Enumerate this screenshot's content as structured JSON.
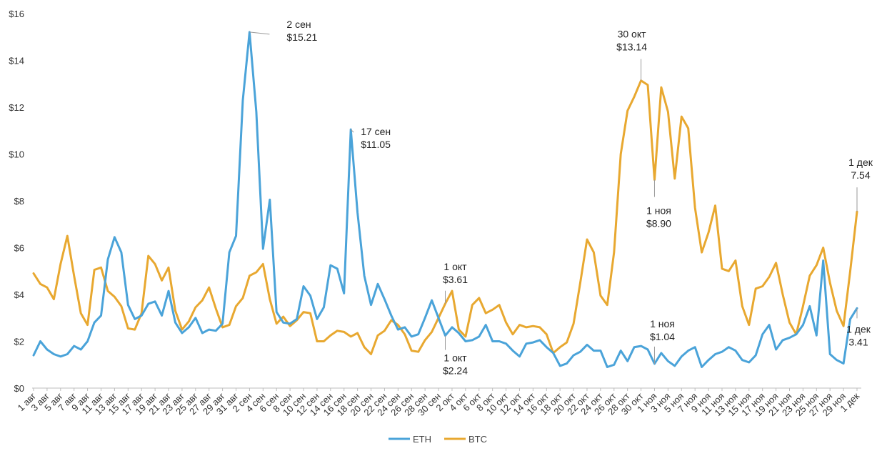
{
  "chart_data": {
    "type": "line",
    "title": "",
    "xlabel": "",
    "ylabel": "",
    "ylim": [
      0,
      16
    ],
    "y_ticks": [
      0,
      2,
      4,
      6,
      8,
      10,
      12,
      14,
      16
    ],
    "y_tick_labels": [
      "$0",
      "$2",
      "$4",
      "$6",
      "$8",
      "$10",
      "$12",
      "$14",
      "$16"
    ],
    "grid": false,
    "legend_position": "bottom-center",
    "x": [
      "1 авг",
      "2 авг",
      "3 авг",
      "4 авг",
      "5 авг",
      "6 авг",
      "7 авг",
      "8 авг",
      "9 авг",
      "10 авг",
      "11 авг",
      "12 авг",
      "13 авг",
      "14 авг",
      "15 авг",
      "16 авг",
      "17 авг",
      "18 авг",
      "19 авг",
      "20 авг",
      "21 авг",
      "22 авг",
      "23 авг",
      "24 авг",
      "25 авг",
      "26 авг",
      "27 авг",
      "28 авг",
      "29 авг",
      "30 авг",
      "31 авг",
      "1 сен",
      "2 сен",
      "3 сен",
      "4 сен",
      "5 сен",
      "6 сен",
      "7 сен",
      "8 сен",
      "9 сен",
      "10 сен",
      "11 сен",
      "12 сен",
      "13 сен",
      "14 сен",
      "15 сен",
      "16 сен",
      "17 сен",
      "18 сен",
      "19 сен",
      "20 сен",
      "21 сен",
      "22 сен",
      "23 сен",
      "24 сен",
      "25 сен",
      "26 сен",
      "27 сен",
      "28 сен",
      "29 сен",
      "30 сен",
      "1 окт",
      "2 окт",
      "3 окт",
      "4 окт",
      "5 окт",
      "6 окт",
      "7 окт",
      "8 окт",
      "9 окт",
      "10 окт",
      "11 окт",
      "12 окт",
      "13 окт",
      "14 окт",
      "15 окт",
      "16 окт",
      "17 окт",
      "18 окт",
      "19 окт",
      "20 окт",
      "21 окт",
      "22 окт",
      "23 окт",
      "24 окт",
      "25 окт",
      "26 окт",
      "27 окт",
      "28 окт",
      "29 окт",
      "30 окт",
      "31 окт",
      "1 ноя",
      "2 ноя",
      "3 ноя",
      "4 ноя",
      "5 ноя",
      "6 ноя",
      "7 ноя",
      "8 ноя",
      "9 ноя",
      "10 ноя",
      "11 ноя",
      "12 ноя",
      "13 ноя",
      "14 ноя",
      "15 ноя",
      "16 ноя",
      "17 ноя",
      "18 ноя",
      "19 ноя",
      "20 ноя",
      "21 ноя",
      "22 ноя",
      "23 ноя",
      "24 ноя",
      "25 ноя",
      "26 ноя",
      "27 ноя",
      "28 ноя",
      "29 ноя",
      "30 ноя",
      "1 дек"
    ],
    "x_tick_labels": [
      "1 авг",
      "3 авг",
      "5 авг",
      "7 авг",
      "9 авг",
      "11 авг",
      "13 авг",
      "15 авг",
      "17 авг",
      "19 авг",
      "21 авг",
      "23 авг",
      "25 авг",
      "27 авг",
      "29 авг",
      "31 авг",
      "2 сен",
      "4 сен",
      "6 сен",
      "8 сен",
      "10 сен",
      "12 сен",
      "14 сен",
      "16 сен",
      "18 сен",
      "20 сен",
      "22 сен",
      "24 сен",
      "26 сен",
      "28 сен",
      "30 сен",
      "2 окт",
      "4 окт",
      "6 окт",
      "8 окт",
      "10 окт",
      "12 окт",
      "14 окт",
      "16 окт",
      "18 окт",
      "20 окт",
      "22 окт",
      "24 окт",
      "26 окт",
      "28 окт",
      "30 окт",
      "1 ноя",
      "3 ноя",
      "5 ноя",
      "7 ноя",
      "9 ноя",
      "11 ноя",
      "13 ноя",
      "15 ноя",
      "17 ноя",
      "19 ноя",
      "21 ноя",
      "23 ноя",
      "25 ноя",
      "27 ноя",
      "29 ноя",
      "1 дек"
    ],
    "series": [
      {
        "name": "ETH",
        "color": "#4aa3d9",
        "values": [
          1.4,
          2.0,
          1.65,
          1.45,
          1.35,
          1.45,
          1.8,
          1.65,
          2.0,
          2.8,
          3.1,
          5.5,
          6.45,
          5.8,
          3.55,
          2.95,
          3.1,
          3.6,
          3.7,
          3.1,
          4.15,
          2.8,
          2.35,
          2.6,
          3.0,
          2.35,
          2.5,
          2.45,
          2.75,
          5.8,
          6.5,
          12.3,
          15.21,
          11.8,
          5.95,
          8.05,
          3.25,
          2.8,
          2.75,
          2.95,
          4.35,
          3.95,
          2.95,
          3.45,
          5.25,
          5.1,
          4.05,
          11.05,
          7.5,
          4.8,
          3.55,
          4.45,
          3.8,
          3.1,
          2.5,
          2.6,
          2.2,
          2.3,
          3.0,
          3.75,
          3.0,
          2.24,
          2.6,
          2.35,
          2.0,
          2.05,
          2.2,
          2.7,
          2.0,
          2.0,
          1.9,
          1.6,
          1.35,
          1.9,
          1.95,
          2.05,
          1.75,
          1.5,
          0.95,
          1.05,
          1.4,
          1.55,
          1.85,
          1.6,
          1.6,
          0.9,
          1.0,
          1.6,
          1.15,
          1.75,
          1.8,
          1.65,
          1.04,
          1.5,
          1.15,
          0.95,
          1.35,
          1.6,
          1.75,
          0.9,
          1.2,
          1.45,
          1.55,
          1.75,
          1.6,
          1.2,
          1.1,
          1.4,
          2.3,
          2.7,
          1.65,
          2.05,
          2.15,
          2.3,
          2.7,
          3.5,
          2.25,
          5.45,
          1.45,
          1.2,
          1.05,
          2.95,
          3.41
        ]
      },
      {
        "name": "BTC",
        "color": "#e8a830",
        "values": [
          4.9,
          4.45,
          4.3,
          3.8,
          5.3,
          6.5,
          4.8,
          3.2,
          2.7,
          5.05,
          5.15,
          4.15,
          3.9,
          3.5,
          2.55,
          2.5,
          3.2,
          5.65,
          5.3,
          4.6,
          5.15,
          3.3,
          2.5,
          2.85,
          3.45,
          3.75,
          4.3,
          3.4,
          2.6,
          2.7,
          3.5,
          3.85,
          4.8,
          4.95,
          5.3,
          3.8,
          2.75,
          3.05,
          2.65,
          2.9,
          3.25,
          3.2,
          2.0,
          2.0,
          2.25,
          2.45,
          2.4,
          2.2,
          2.35,
          1.75,
          1.45,
          2.25,
          2.45,
          2.9,
          2.7,
          2.3,
          1.6,
          1.55,
          2.05,
          2.4,
          3.0,
          3.61,
          4.15,
          2.5,
          2.2,
          3.55,
          3.85,
          3.2,
          3.35,
          3.55,
          2.8,
          2.3,
          2.7,
          2.6,
          2.65,
          2.6,
          2.3,
          1.5,
          1.75,
          1.95,
          2.75,
          4.5,
          6.35,
          5.8,
          3.95,
          3.55,
          5.8,
          10.0,
          11.85,
          12.45,
          13.14,
          12.95,
          8.9,
          12.85,
          11.8,
          8.95,
          11.6,
          11.1,
          7.7,
          5.8,
          6.65,
          7.8,
          5.1,
          5.0,
          5.45,
          3.5,
          2.7,
          4.25,
          4.35,
          4.75,
          5.35,
          4.0,
          2.8,
          2.3,
          3.5,
          4.8,
          5.25,
          6.0,
          4.5,
          3.3,
          2.65,
          5.0,
          7.54
        ]
      }
    ],
    "annotations": [
      {
        "series": "ETH",
        "x": "2 сен",
        "value": 15.21,
        "label_date": "2 сен",
        "label_value": "$15.21"
      },
      {
        "series": "ETH",
        "x": "17 сен",
        "value": 11.05,
        "label_date": "17 сен",
        "label_value": "$11.05"
      },
      {
        "series": "BTC",
        "x": "30 окт",
        "value": 13.14,
        "label_date": "30 окт",
        "label_value": "$13.14"
      },
      {
        "series": "BTC",
        "x": "1 дек",
        "value": 7.54,
        "label_date": "1 дек",
        "label_value": "7.54"
      },
      {
        "series": "BTC",
        "x": "1 ноя",
        "value": 8.9,
        "label_date": "1 ноя",
        "label_value": "$8.90"
      },
      {
        "series": "BTC",
        "x": "1 окт",
        "value": 3.61,
        "label_date": "1 окт",
        "label_value": "$3.61"
      },
      {
        "series": "ETH",
        "x": "1 окт",
        "value": 2.24,
        "label_date": "1 окт",
        "label_value": "$2.24"
      },
      {
        "series": "ETH",
        "x": "1 ноя",
        "value": 1.04,
        "label_date": "1 ноя",
        "label_value": "$1.04"
      },
      {
        "series": "ETH",
        "x": "1 дек",
        "value": 3.41,
        "label_date": "1 дек",
        "label_value": "3.41"
      }
    ]
  }
}
